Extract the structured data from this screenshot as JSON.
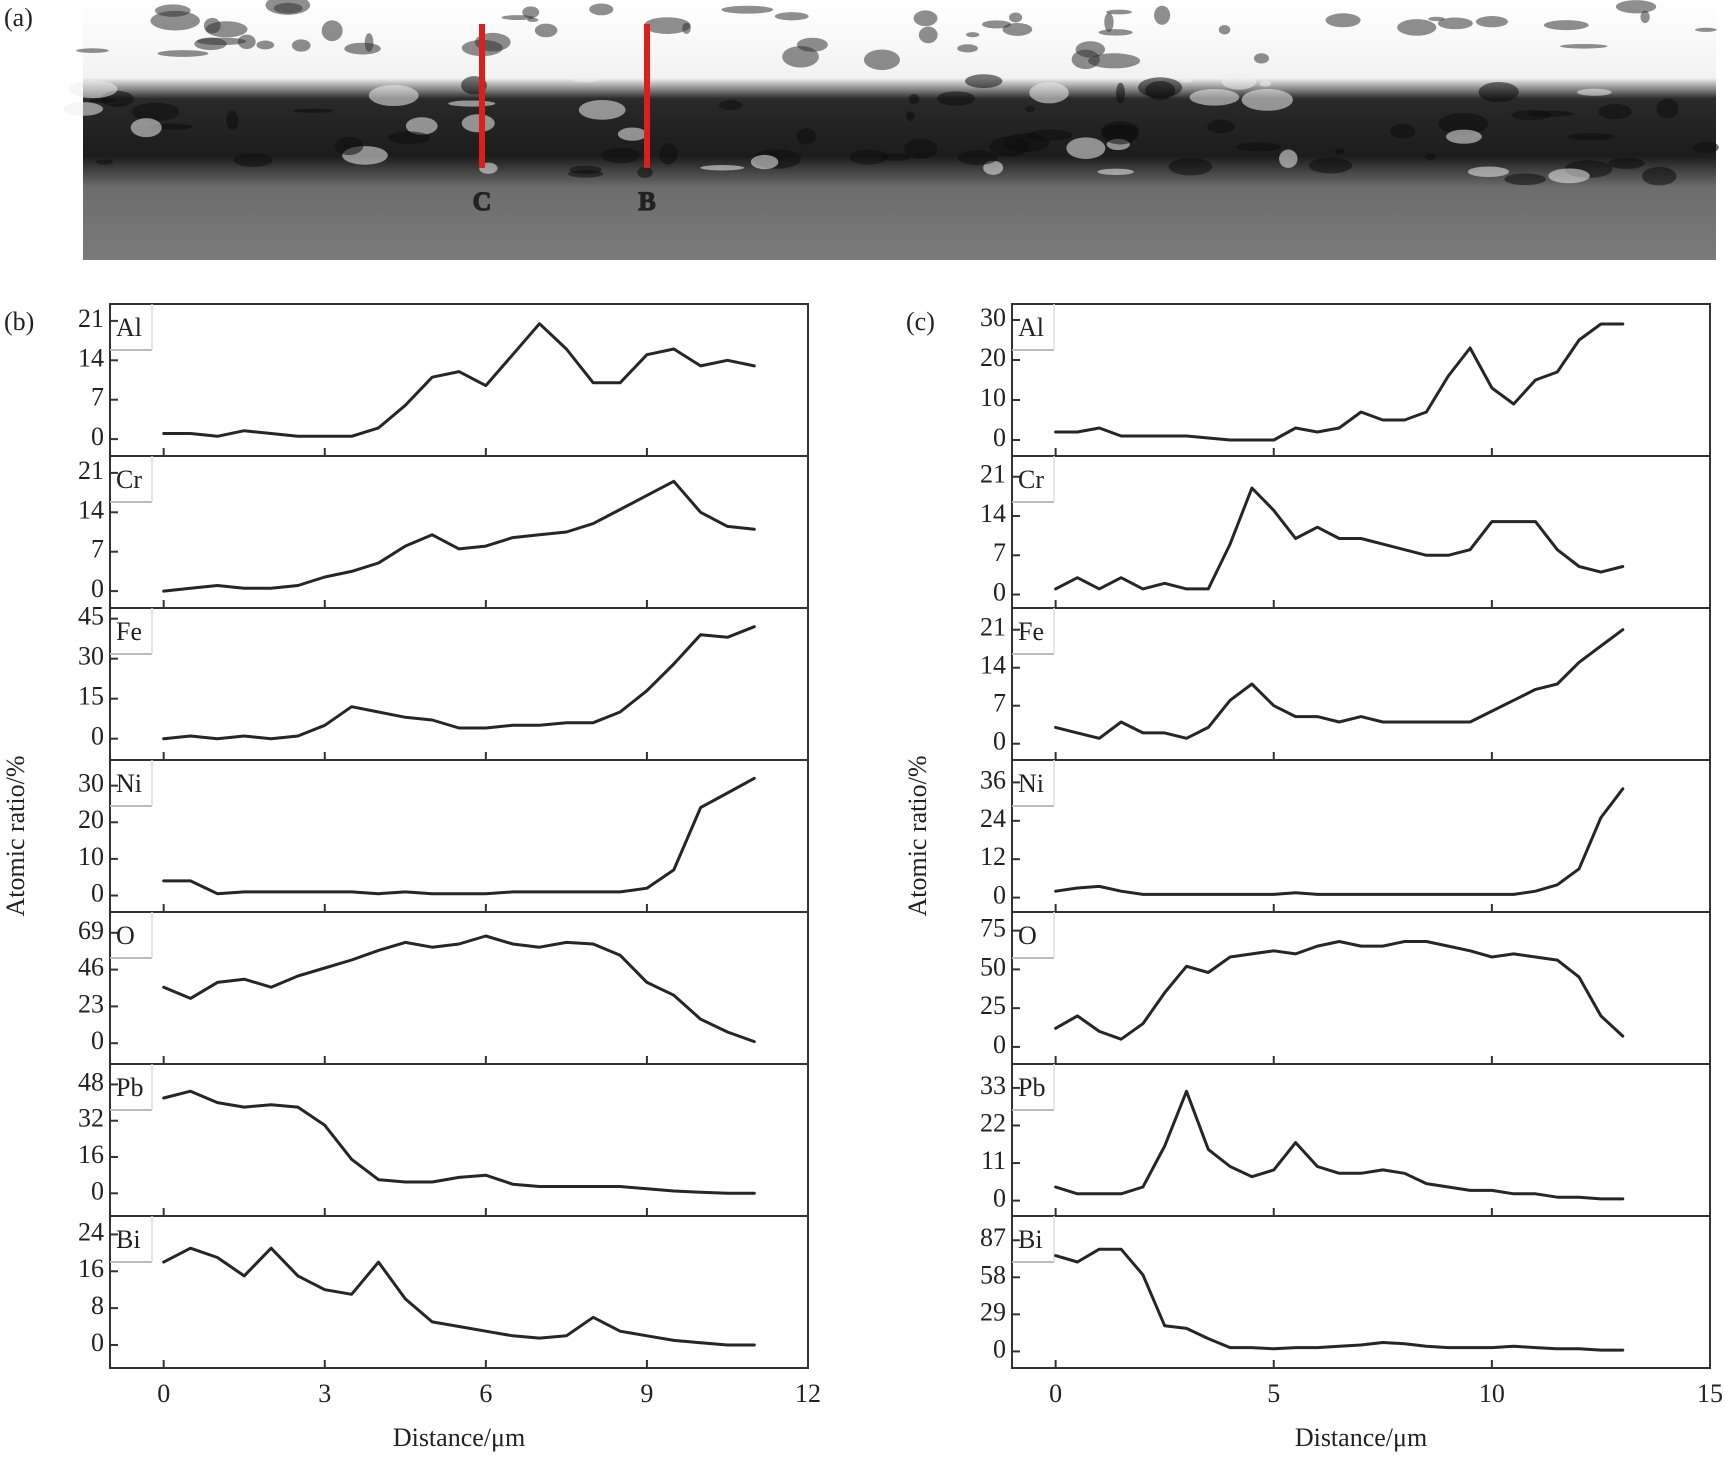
{
  "image_panel": {
    "label": "(a)",
    "markers": [
      "C",
      "B"
    ]
  },
  "chart_data": [
    {
      "type": "line",
      "label": "(b)",
      "xlabel": "Distance/μm",
      "ylabel": "Atomic ratio/%",
      "color": "#262626",
      "xlim": [
        -1,
        12
      ],
      "xticks": [
        0,
        3,
        6,
        9,
        12
      ],
      "x": [
        0,
        0.5,
        1,
        1.5,
        2,
        2.5,
        3,
        3.5,
        4,
        4.5,
        5,
        5.5,
        6,
        6.5,
        7,
        7.5,
        8,
        8.5,
        9,
        9.5,
        10,
        10.5,
        11
      ],
      "series": [
        {
          "name": "Al",
          "ylim": [
            -3,
            24
          ],
          "yticks": [
            0,
            7,
            14,
            21
          ],
          "values": [
            1,
            1,
            0.5,
            1.5,
            1,
            0.5,
            0.5,
            0.5,
            2,
            6,
            11,
            12,
            9.5,
            15,
            20.5,
            16,
            10,
            10,
            15,
            16,
            13,
            14,
            13
          ]
        },
        {
          "name": "Cr",
          "ylim": [
            -3,
            24
          ],
          "yticks": [
            0,
            7,
            14,
            21
          ],
          "values": [
            0,
            0.5,
            1,
            0.5,
            0.5,
            1,
            2.5,
            3.5,
            5,
            8,
            10,
            7.5,
            8,
            9.5,
            10,
            10.5,
            12,
            14.5,
            17,
            19.5,
            14,
            11.5,
            11
          ]
        },
        {
          "name": "Fe",
          "ylim": [
            -8,
            49
          ],
          "yticks": [
            0,
            15,
            30,
            45
          ],
          "values": [
            0,
            1,
            0,
            1,
            0,
            1,
            5,
            12,
            10,
            8,
            7,
            4,
            4,
            5,
            5,
            6,
            6,
            10,
            18,
            28,
            39,
            38,
            42
          ]
        },
        {
          "name": "Ni",
          "ylim": [
            -4.5,
            37
          ],
          "yticks": [
            0,
            10,
            20,
            30
          ],
          "values": [
            4,
            4,
            0.5,
            1,
            1,
            1,
            1,
            1,
            0.5,
            1,
            0.5,
            0.5,
            0.5,
            1,
            1,
            1,
            1,
            1,
            2,
            7,
            24,
            28,
            32
          ]
        },
        {
          "name": "O",
          "ylim": [
            -13,
            82
          ],
          "yticks": [
            0,
            23,
            46,
            69
          ],
          "values": [
            35,
            28,
            38,
            40,
            35,
            42,
            47,
            52,
            58,
            63,
            60,
            62,
            67,
            62,
            60,
            63,
            62,
            55,
            38,
            30,
            15,
            7,
            1
          ]
        },
        {
          "name": "Pb",
          "ylim": [
            -10,
            57
          ],
          "yticks": [
            0,
            16,
            32,
            48
          ],
          "values": [
            42,
            45,
            40,
            38,
            39,
            38,
            30,
            15,
            6,
            5,
            5,
            7,
            8,
            4,
            3,
            3,
            3,
            3,
            2,
            1,
            0.5,
            0,
            0
          ]
        },
        {
          "name": "Bi",
          "ylim": [
            -5,
            28
          ],
          "yticks": [
            0,
            8,
            16,
            24
          ],
          "values": [
            18,
            21,
            19,
            15,
            21,
            15,
            12,
            11,
            18,
            10,
            5,
            4,
            3,
            2,
            1.5,
            2,
            6,
            3,
            2,
            1,
            0.5,
            0,
            0
          ]
        }
      ]
    },
    {
      "type": "line",
      "label": "(c)",
      "xlabel": "Distance/μm",
      "ylabel": "Atomic ratio/%",
      "color": "#262626",
      "xlim": [
        -1,
        15
      ],
      "xticks": [
        0,
        5,
        10,
        15
      ],
      "x": [
        0,
        0.5,
        1,
        1.5,
        2,
        2.5,
        3,
        3.5,
        4,
        4.5,
        5,
        5.5,
        6,
        6.5,
        7,
        7.5,
        8,
        8.5,
        9,
        9.5,
        10,
        10.5,
        11,
        11.5,
        12,
        12.5,
        13
      ],
      "series": [
        {
          "name": "Al",
          "ylim": [
            -4,
            34
          ],
          "yticks": [
            0,
            10,
            20,
            30
          ],
          "values": [
            2,
            2,
            3,
            1,
            1,
            1,
            1,
            0.5,
            0,
            0,
            0,
            3,
            2,
            3,
            7,
            5,
            5,
            7,
            16,
            23,
            13,
            9,
            15,
            17,
            25,
            29,
            29
          ]
        },
        {
          "name": "Cr",
          "ylim": [
            -2.4,
            24.7
          ],
          "yticks": [
            0,
            7,
            14,
            21
          ],
          "values": [
            1,
            3,
            1,
            3,
            1,
            2,
            1,
            1,
            9,
            19,
            15,
            10,
            12,
            10,
            10,
            9,
            8,
            7,
            7,
            8,
            13,
            13,
            13,
            8,
            5,
            4,
            5
          ]
        },
        {
          "name": "Fe",
          "ylim": [
            -3,
            25
          ],
          "yticks": [
            0,
            7,
            14,
            21
          ],
          "values": [
            3,
            2,
            1,
            4,
            2,
            2,
            1,
            3,
            8,
            11,
            7,
            5,
            5,
            4,
            5,
            4,
            4,
            4,
            4,
            4,
            6,
            8,
            10,
            11,
            15,
            18,
            21
          ]
        },
        {
          "name": "Ni",
          "ylim": [
            -4.5,
            43
          ],
          "yticks": [
            0,
            12,
            24,
            36
          ],
          "values": [
            2,
            3,
            3.5,
            2,
            1,
            1,
            1,
            1,
            1,
            1,
            1,
            1.5,
            1,
            1,
            1,
            1,
            1,
            1,
            1,
            1,
            1,
            1,
            2,
            4,
            9,
            25,
            34
          ]
        },
        {
          "name": "O",
          "ylim": [
            -11,
            87
          ],
          "yticks": [
            0,
            25,
            50,
            75
          ],
          "values": [
            12,
            20,
            10,
            5,
            15,
            35,
            52,
            48,
            58,
            60,
            62,
            60,
            65,
            68,
            65,
            65,
            68,
            68,
            65,
            62,
            58,
            60,
            58,
            56,
            45,
            20,
            7
          ]
        },
        {
          "name": "Pb",
          "ylim": [
            -4.5,
            40
          ],
          "yticks": [
            0,
            11,
            22,
            33
          ],
          "values": [
            4,
            2,
            2,
            2,
            4,
            16,
            32,
            15,
            10,
            7,
            9,
            17,
            10,
            8,
            8,
            9,
            8,
            5,
            4,
            3,
            3,
            2,
            2,
            1,
            1,
            0.5,
            0.5
          ]
        },
        {
          "name": "Bi",
          "ylim": [
            -13,
            106
          ],
          "yticks": [
            0,
            29,
            58,
            87
          ],
          "values": [
            75,
            70,
            80,
            80,
            60,
            20,
            18,
            10,
            3,
            3,
            2,
            3,
            3,
            4,
            5,
            7,
            6,
            4,
            3,
            3,
            3,
            4,
            3,
            2,
            2,
            1,
            1
          ]
        }
      ]
    }
  ]
}
